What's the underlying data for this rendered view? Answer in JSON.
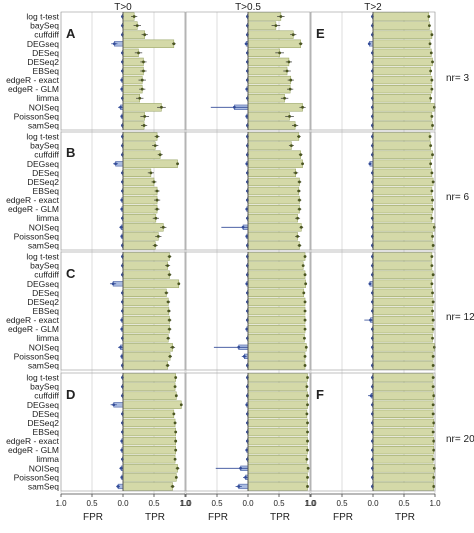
{
  "chart_data": {
    "type": "bar",
    "orientation": "horizontal",
    "categories": [
      "log t-test",
      "baySeq",
      "cuffdiff",
      "DEGseq",
      "DESeq",
      "DESeq2",
      "EBSeq",
      "edgeR - exact",
      "edgeR - GLM",
      "limma",
      "NOISeq",
      "PoissonSeq",
      "samSeq"
    ],
    "column_titles": [
      "T>0",
      "T>0.5",
      "T>2"
    ],
    "x_axis_left_label": "FPR",
    "x_axis_right_label": "TPR",
    "x_ticks": [
      "1.0",
      "0.5",
      "0.0",
      "0.5",
      "1.0"
    ],
    "row_labels": [
      "nr= 3",
      "nr= 6",
      "nr= 12",
      "nr= 20"
    ],
    "panel_letters": [
      [
        "A",
        "",
        "E"
      ],
      [
        "B",
        "",
        ""
      ],
      [
        "C",
        "",
        ""
      ],
      [
        "D",
        "",
        "F"
      ]
    ],
    "xlim": [
      -1,
      1
    ],
    "error_bars": true,
    "colors": {
      "tpr_fill": "#d4d9a8",
      "tpr_edge": "#8f9c5a",
      "fpr_fill": "#aabbe0",
      "fpr_edge": "#334c99",
      "point": "#4a5520",
      "divider": "#555555"
    },
    "panels": [
      {
        "nr": 3,
        "columns": [
          {
            "threshold": "T>0",
            "tpr": [
              0.18,
              0.23,
              0.35,
              0.82,
              0.25,
              0.33,
              0.33,
              0.31,
              0.31,
              0.27,
              0.62,
              0.35,
              0.34
            ],
            "tpr_err": [
              0.05,
              0.06,
              0.05,
              0.03,
              0.06,
              0.05,
              0.05,
              0.06,
              0.05,
              0.06,
              0.07,
              0.07,
              0.05
            ],
            "fpr": [
              0.01,
              0.01,
              0.01,
              0.14,
              0.01,
              0.01,
              0.01,
              0.02,
              0.02,
              0.01,
              0.04,
              0.02,
              0.01
            ],
            "fpr_err": [
              0.01,
              0.01,
              0.01,
              0.05,
              0.01,
              0.01,
              0.01,
              0.02,
              0.02,
              0.01,
              0.04,
              0.02,
              0.01
            ]
          },
          {
            "threshold": "T>0.5",
            "tpr": [
              0.53,
              0.45,
              0.73,
              0.85,
              0.51,
              0.66,
              0.63,
              0.69,
              0.68,
              0.59,
              0.88,
              0.67,
              0.76
            ],
            "tpr_err": [
              0.06,
              0.07,
              0.05,
              0.03,
              0.07,
              0.05,
              0.06,
              0.05,
              0.05,
              0.06,
              0.05,
              0.07,
              0.05
            ],
            "fpr": [
              0.01,
              0.01,
              0.01,
              0.03,
              0.01,
              0.01,
              0.01,
              0.01,
              0.02,
              0.01,
              0.22,
              0.02,
              0.01
            ],
            "fpr_err": [
              0.01,
              0.01,
              0.01,
              0.02,
              0.01,
              0.01,
              0.01,
              0.01,
              0.02,
              0.01,
              0.38,
              0.02,
              0.01
            ]
          },
          {
            "threshold": "T>2",
            "tpr": [
              0.9,
              0.91,
              0.95,
              0.92,
              0.94,
              0.96,
              0.93,
              0.95,
              0.95,
              0.93,
              0.99,
              0.95,
              0.96
            ],
            "tpr_err": [
              0.01,
              0.01,
              0.01,
              0.01,
              0.01,
              0.01,
              0.01,
              0.01,
              0.01,
              0.01,
              0.01,
              0.01,
              0.01
            ],
            "fpr": [
              0.01,
              0.01,
              0.01,
              0.06,
              0.01,
              0.01,
              0.01,
              0.01,
              0.01,
              0.01,
              0.01,
              0.01,
              0.01
            ],
            "fpr_err": [
              0.01,
              0.01,
              0.01,
              0.02,
              0.01,
              0.01,
              0.01,
              0.01,
              0.01,
              0.01,
              0.01,
              0.01,
              0.01
            ]
          }
        ]
      },
      {
        "nr": 6,
        "columns": [
          {
            "threshold": "T>0",
            "tpr": [
              0.55,
              0.52,
              0.6,
              0.88,
              0.45,
              0.5,
              0.55,
              0.55,
              0.55,
              0.53,
              0.65,
              0.57,
              0.52
            ],
            "tpr_err": [
              0.04,
              0.05,
              0.04,
              0.02,
              0.05,
              0.04,
              0.04,
              0.05,
              0.04,
              0.05,
              0.05,
              0.05,
              0.04
            ],
            "fpr": [
              0.01,
              0.01,
              0.01,
              0.12,
              0.01,
              0.01,
              0.01,
              0.02,
              0.02,
              0.01,
              0.03,
              0.02,
              0.01
            ],
            "fpr_err": [
              0.01,
              0.01,
              0.01,
              0.04,
              0.01,
              0.01,
              0.01,
              0.02,
              0.02,
              0.01,
              0.03,
              0.02,
              0.01
            ]
          },
          {
            "threshold": "T>0.5",
            "tpr": [
              0.82,
              0.7,
              0.85,
              0.88,
              0.77,
              0.83,
              0.82,
              0.83,
              0.83,
              0.8,
              0.86,
              0.8,
              0.83
            ],
            "tpr_err": [
              0.03,
              0.04,
              0.03,
              0.02,
              0.04,
              0.03,
              0.03,
              0.03,
              0.03,
              0.04,
              0.03,
              0.04,
              0.03
            ],
            "fpr": [
              0.01,
              0.01,
              0.01,
              0.02,
              0.01,
              0.01,
              0.01,
              0.01,
              0.02,
              0.01,
              0.08,
              0.02,
              0.01
            ],
            "fpr_err": [
              0.01,
              0.01,
              0.01,
              0.02,
              0.01,
              0.01,
              0.01,
              0.01,
              0.02,
              0.01,
              0.35,
              0.02,
              0.01
            ]
          },
          {
            "threshold": "T>2",
            "tpr": [
              0.92,
              0.93,
              0.96,
              0.93,
              0.95,
              0.97,
              0.95,
              0.96,
              0.96,
              0.95,
              0.99,
              0.96,
              0.97
            ],
            "tpr_err": [
              0.01,
              0.01,
              0.01,
              0.01,
              0.01,
              0.01,
              0.01,
              0.01,
              0.01,
              0.01,
              0.01,
              0.01,
              0.01
            ],
            "fpr": [
              0.01,
              0.01,
              0.01,
              0.05,
              0.01,
              0.01,
              0.01,
              0.01,
              0.01,
              0.01,
              0.01,
              0.01,
              0.01
            ],
            "fpr_err": [
              0.01,
              0.01,
              0.01,
              0.02,
              0.01,
              0.01,
              0.01,
              0.01,
              0.01,
              0.01,
              0.01,
              0.01,
              0.01
            ]
          }
        ]
      },
      {
        "nr": 12,
        "columns": [
          {
            "threshold": "T>0",
            "tpr": [
              0.75,
              0.72,
              0.75,
              0.9,
              0.7,
              0.73,
              0.74,
              0.75,
              0.75,
              0.73,
              0.8,
              0.76,
              0.72
            ],
            "tpr_err": [
              0.03,
              0.04,
              0.03,
              0.02,
              0.03,
              0.03,
              0.03,
              0.03,
              0.03,
              0.03,
              0.04,
              0.03,
              0.03
            ],
            "fpr": [
              0.01,
              0.01,
              0.01,
              0.16,
              0.01,
              0.01,
              0.01,
              0.02,
              0.02,
              0.01,
              0.04,
              0.02,
              0.01
            ],
            "fpr_err": [
              0.01,
              0.01,
              0.01,
              0.05,
              0.01,
              0.01,
              0.01,
              0.02,
              0.02,
              0.01,
              0.04,
              0.02,
              0.01
            ]
          },
          {
            "threshold": "T>0.5",
            "tpr": [
              0.92,
              0.89,
              0.92,
              0.93,
              0.9,
              0.92,
              0.92,
              0.92,
              0.92,
              0.91,
              0.94,
              0.92,
              0.92
            ],
            "tpr_err": [
              0.02,
              0.02,
              0.02,
              0.01,
              0.02,
              0.02,
              0.02,
              0.02,
              0.02,
              0.02,
              0.02,
              0.02,
              0.02
            ],
            "fpr": [
              0.01,
              0.01,
              0.01,
              0.02,
              0.01,
              0.01,
              0.01,
              0.01,
              0.02,
              0.01,
              0.15,
              0.06,
              0.01
            ],
            "fpr_err": [
              0.01,
              0.01,
              0.01,
              0.02,
              0.01,
              0.01,
              0.01,
              0.01,
              0.02,
              0.01,
              0.4,
              0.04,
              0.01
            ]
          },
          {
            "threshold": "T>2",
            "tpr": [
              0.95,
              0.95,
              0.97,
              0.95,
              0.96,
              0.97,
              0.96,
              0.97,
              0.97,
              0.96,
              0.99,
              0.97,
              0.97
            ],
            "tpr_err": [
              0.01,
              0.01,
              0.01,
              0.01,
              0.01,
              0.01,
              0.01,
              0.01,
              0.01,
              0.01,
              0.01,
              0.01,
              0.01
            ],
            "fpr": [
              0.01,
              0.01,
              0.01,
              0.05,
              0.01,
              0.01,
              0.01,
              0.04,
              0.01,
              0.01,
              0.01,
              0.01,
              0.01
            ],
            "fpr_err": [
              0.01,
              0.01,
              0.01,
              0.02,
              0.01,
              0.01,
              0.01,
              0.1,
              0.01,
              0.01,
              0.01,
              0.01,
              0.01
            ]
          }
        ]
      },
      {
        "nr": 20,
        "columns": [
          {
            "threshold": "T>0",
            "tpr": [
              0.85,
              0.84,
              0.86,
              0.94,
              0.82,
              0.84,
              0.85,
              0.85,
              0.85,
              0.84,
              0.88,
              0.86,
              0.8
            ],
            "tpr_err": [
              0.02,
              0.02,
              0.02,
              0.01,
              0.02,
              0.02,
              0.02,
              0.02,
              0.02,
              0.02,
              0.03,
              0.02,
              0.03
            ],
            "fpr": [
              0.01,
              0.01,
              0.01,
              0.15,
              0.01,
              0.01,
              0.01,
              0.02,
              0.02,
              0.01,
              0.03,
              0.02,
              0.08
            ],
            "fpr_err": [
              0.01,
              0.01,
              0.01,
              0.05,
              0.01,
              0.01,
              0.01,
              0.02,
              0.02,
              0.01,
              0.03,
              0.02,
              0.03
            ]
          },
          {
            "threshold": "T>0.5",
            "tpr": [
              0.96,
              0.95,
              0.96,
              0.96,
              0.95,
              0.96,
              0.96,
              0.96,
              0.96,
              0.95,
              0.97,
              0.96,
              0.96
            ],
            "tpr_err": [
              0.01,
              0.01,
              0.01,
              0.01,
              0.01,
              0.01,
              0.01,
              0.01,
              0.01,
              0.01,
              0.01,
              0.01,
              0.01
            ],
            "fpr": [
              0.01,
              0.01,
              0.01,
              0.02,
              0.01,
              0.01,
              0.01,
              0.01,
              0.02,
              0.01,
              0.12,
              0.04,
              0.15
            ],
            "fpr_err": [
              0.01,
              0.01,
              0.01,
              0.02,
              0.01,
              0.01,
              0.01,
              0.01,
              0.02,
              0.01,
              0.4,
              0.04,
              0.05
            ]
          },
          {
            "threshold": "T>2",
            "tpr": [
              0.97,
              0.97,
              0.98,
              0.97,
              0.97,
              0.98,
              0.97,
              0.98,
              0.98,
              0.97,
              0.99,
              0.98,
              0.98
            ],
            "tpr_err": [
              0.01,
              0.01,
              0.01,
              0.01,
              0.01,
              0.01,
              0.01,
              0.01,
              0.01,
              0.01,
              0.01,
              0.01,
              0.01
            ],
            "fpr": [
              0.01,
              0.01,
              0.03,
              0.01,
              0.01,
              0.01,
              0.01,
              0.01,
              0.01,
              0.01,
              0.01,
              0.01,
              0.01
            ],
            "fpr_err": [
              0.01,
              0.01,
              0.05,
              0.01,
              0.01,
              0.01,
              0.01,
              0.01,
              0.01,
              0.01,
              0.01,
              0.01,
              0.01
            ]
          }
        ]
      }
    ]
  }
}
